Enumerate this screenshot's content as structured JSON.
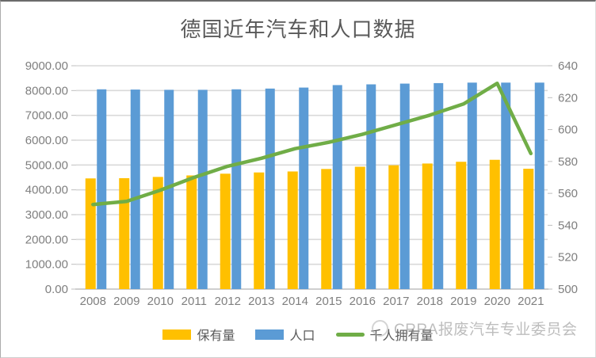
{
  "title": "德国近年汽车和人口数据",
  "watermark": {
    "text": "CRRA报废汽车专业委员会"
  },
  "colors": {
    "stock_bar": "#FFC000",
    "population_bar": "#5B9BD5",
    "per_capita_line": "#70AD47",
    "grid": "#D9D9D9",
    "axis_line": "#BFBFBF",
    "tick": "#BFBFBF",
    "axis_text": "#7F7F7F",
    "title_text": "#595959"
  },
  "chart_data": {
    "type": "combo-bar-line",
    "title": "德国近年汽车和人口数据",
    "categories": [
      "2008",
      "2009",
      "2010",
      "2011",
      "2012",
      "2013",
      "2014",
      "2015",
      "2016",
      "2017",
      "2018",
      "2019",
      "2020",
      "2021"
    ],
    "series": [
      {
        "name": "保有量",
        "type": "bar",
        "axis": "left",
        "color": "#FFC000",
        "values": [
          4460,
          4470,
          4520,
          4580,
          4650,
          4700,
          4740,
          4840,
          4930,
          4990,
          5060,
          5130,
          5210,
          4850
        ]
      },
      {
        "name": "人口",
        "type": "bar",
        "axis": "left",
        "color": "#5B9BD5",
        "values": [
          8050,
          8040,
          8030,
          8030,
          8050,
          8080,
          8120,
          8220,
          8250,
          8280,
          8300,
          8320,
          8320,
          8320
        ]
      },
      {
        "name": "千人拥有量",
        "type": "line",
        "axis": "right",
        "color": "#70AD47",
        "values": [
          553,
          555,
          562,
          570,
          577,
          582,
          588,
          592,
          597,
          603,
          609,
          616,
          629,
          585
        ]
      }
    ],
    "left_axis": {
      "min": 0,
      "max": 9000,
      "step": 1000,
      "decimals": 2
    },
    "right_axis": {
      "min": 500,
      "max": 640,
      "step": 20,
      "decimals": 0
    },
    "grid": true,
    "legend_position": "bottom"
  }
}
